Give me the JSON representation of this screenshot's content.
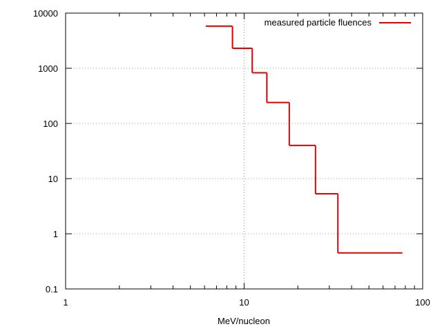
{
  "chart_data": {
    "type": "line",
    "step": true,
    "xscale": "log",
    "yscale": "log",
    "xlim": [
      1,
      100
    ],
    "ylim": [
      0.1,
      10000
    ],
    "xlabel": "MeV/nucleon",
    "ylabel": "",
    "title": "",
    "grid": true,
    "legend_position": "top-right",
    "x_ticks": [
      {
        "value": 1,
        "label": "1"
      },
      {
        "value": 10,
        "label": "10"
      },
      {
        "value": 100,
        "label": "100"
      }
    ],
    "y_ticks": [
      {
        "value": 0.1,
        "label": "0.1"
      },
      {
        "value": 1,
        "label": "1"
      },
      {
        "value": 10,
        "label": "10"
      },
      {
        "value": 100,
        "label": "100"
      },
      {
        "value": 1000,
        "label": "1000"
      },
      {
        "value": 10000,
        "label": "10000"
      }
    ],
    "series": [
      {
        "name": "measured particle fluences",
        "color": "#e00000",
        "bins": [
          {
            "x_start": 6.1,
            "x_end": 8.6,
            "y": 5800
          },
          {
            "x_start": 8.6,
            "x_end": 11.1,
            "y": 2300
          },
          {
            "x_start": 11.1,
            "x_end": 13.4,
            "y": 830
          },
          {
            "x_start": 13.4,
            "x_end": 17.9,
            "y": 240
          },
          {
            "x_start": 17.9,
            "x_end": 25.1,
            "y": 40
          },
          {
            "x_start": 25.1,
            "x_end": 33.5,
            "y": 5.3
          },
          {
            "x_start": 33.5,
            "x_end": 77.0,
            "y": 0.45
          }
        ]
      }
    ]
  }
}
